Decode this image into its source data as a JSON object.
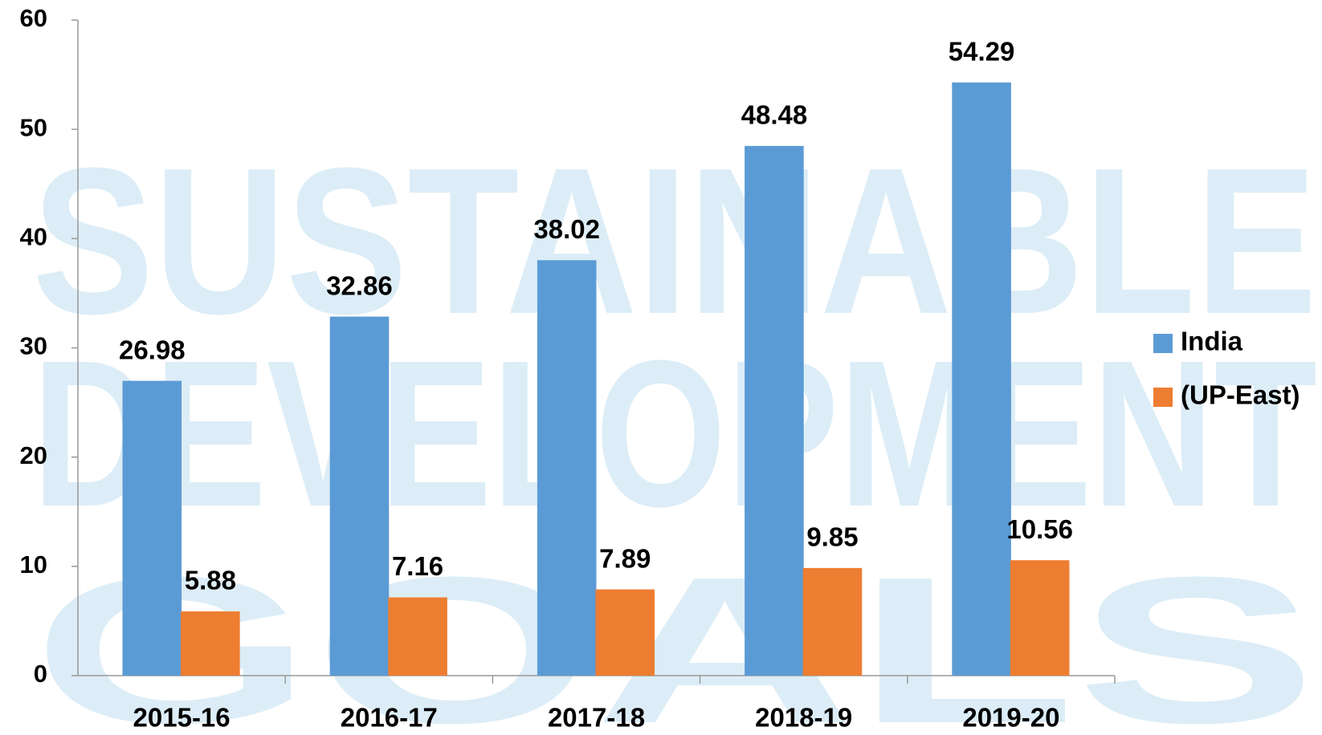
{
  "watermark": [
    "SUSTAINABLE",
    "DEVELOPMENT",
    "GOALS"
  ],
  "chart_data": {
    "type": "bar",
    "categories": [
      "2015-16",
      "2016-17",
      "2017-18",
      "2018-19",
      "2019-20"
    ],
    "series": [
      {
        "name": "India",
        "color": "#5b9bd5",
        "values": [
          26.98,
          32.86,
          38.02,
          48.48,
          54.29
        ]
      },
      {
        "name": "(UP-East)",
        "color": "#ed7d31",
        "values": [
          5.88,
          7.16,
          7.89,
          9.85,
          10.56
        ]
      }
    ],
    "ylim": [
      0,
      60
    ],
    "yticks": [
      0,
      10,
      20,
      30,
      40,
      50,
      60
    ],
    "grid": false,
    "legend": "right"
  }
}
